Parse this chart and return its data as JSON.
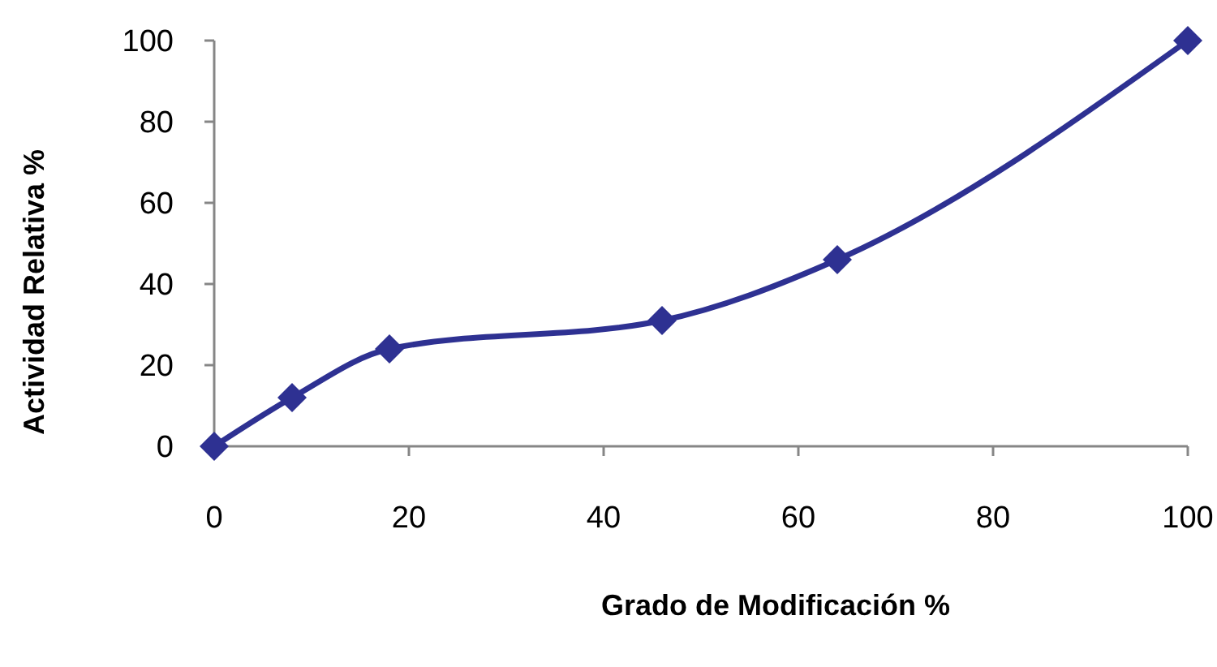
{
  "chart_data": {
    "type": "line",
    "xlabel": "Grado de Modificación %",
    "ylabel": "Actividad Relativa %",
    "x": [
      0,
      8,
      18,
      46,
      64,
      100
    ],
    "series": [
      {
        "color": "#2e3192",
        "values": [
          0,
          12,
          24,
          31,
          46,
          100
        ]
      }
    ],
    "xlim": [
      0,
      100
    ],
    "xticks": [
      0,
      20,
      40,
      60,
      80,
      100
    ],
    "ylim": [
      0,
      100
    ],
    "yticks": [
      0,
      20,
      40,
      60,
      80,
      100
    ],
    "grid": false,
    "marker": "diamond",
    "line_style": "solid"
  }
}
